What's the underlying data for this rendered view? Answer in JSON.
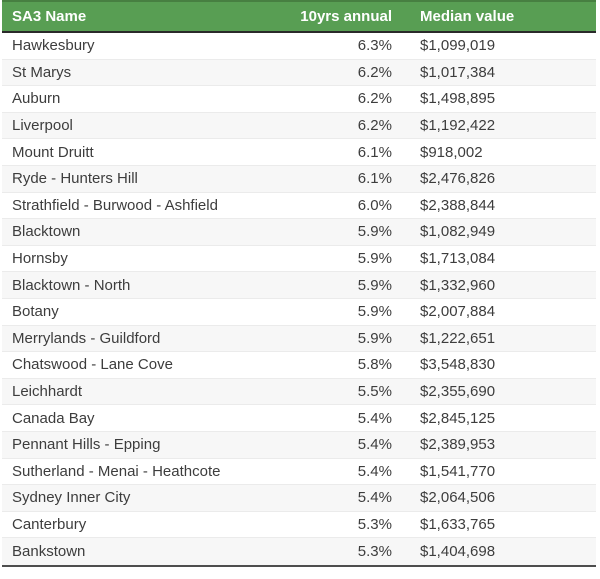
{
  "colors": {
    "header_bg": "#589e53",
    "header_text": "#ffffff",
    "header_top_border": "#477f41",
    "header_bottom_border": "#2a2a2a",
    "row_text": "#3d3d3d",
    "row_separator": "#ebebeb",
    "row_stripe": "#f7f7f7",
    "table_bottom_border": "#4e4e4e"
  },
  "table": {
    "columns": [
      {
        "label": "SA3 Name",
        "align": "left"
      },
      {
        "label": "10yrs annual",
        "align": "right"
      },
      {
        "label": "Median value",
        "align": "left"
      }
    ],
    "rows": [
      {
        "name": "Hawkesbury",
        "annual": "6.3%",
        "median": "$1,099,019"
      },
      {
        "name": "St Marys",
        "annual": "6.2%",
        "median": "$1,017,384"
      },
      {
        "name": "Auburn",
        "annual": "6.2%",
        "median": "$1,498,895"
      },
      {
        "name": "Liverpool",
        "annual": "6.2%",
        "median": "$1,192,422"
      },
      {
        "name": "Mount Druitt",
        "annual": "6.1%",
        "median": "$918,002"
      },
      {
        "name": "Ryde - Hunters Hill",
        "annual": "6.1%",
        "median": "$2,476,826"
      },
      {
        "name": "Strathfield - Burwood - Ashfield",
        "annual": "6.0%",
        "median": "$2,388,844"
      },
      {
        "name": "Blacktown",
        "annual": "5.9%",
        "median": "$1,082,949"
      },
      {
        "name": "Hornsby",
        "annual": "5.9%",
        "median": "$1,713,084"
      },
      {
        "name": "Blacktown - North",
        "annual": "5.9%",
        "median": "$1,332,960"
      },
      {
        "name": "Botany",
        "annual": "5.9%",
        "median": "$2,007,884"
      },
      {
        "name": "Merrylands - Guildford",
        "annual": "5.9%",
        "median": "$1,222,651"
      },
      {
        "name": "Chatswood - Lane Cove",
        "annual": "5.8%",
        "median": "$3,548,830"
      },
      {
        "name": "Leichhardt",
        "annual": "5.5%",
        "median": "$2,355,690"
      },
      {
        "name": "Canada Bay",
        "annual": "5.4%",
        "median": "$2,845,125"
      },
      {
        "name": "Pennant Hills - Epping",
        "annual": "5.4%",
        "median": "$2,389,953"
      },
      {
        "name": "Sutherland - Menai - Heathcote",
        "annual": "5.4%",
        "median": "$1,541,770"
      },
      {
        "name": "Sydney Inner City",
        "annual": "5.4%",
        "median": "$2,064,506"
      },
      {
        "name": "Canterbury",
        "annual": "5.3%",
        "median": "$1,633,765"
      },
      {
        "name": "Bankstown",
        "annual": "5.3%",
        "median": "$1,404,698"
      }
    ]
  }
}
